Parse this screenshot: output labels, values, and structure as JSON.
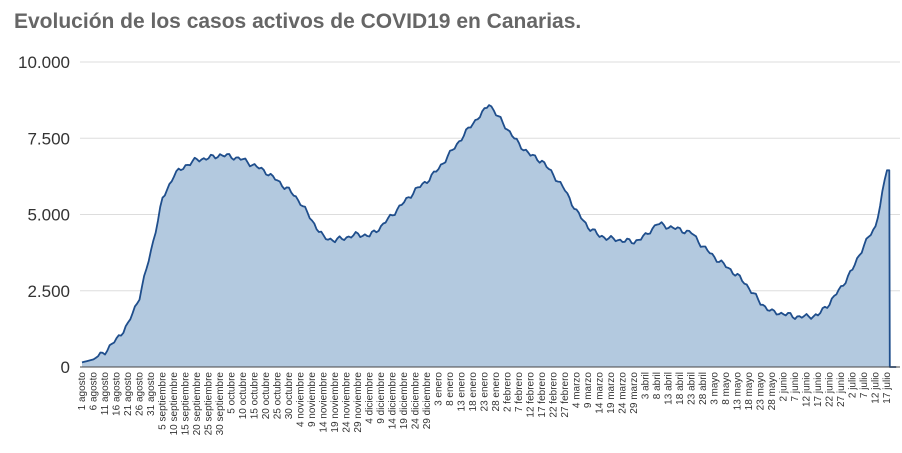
{
  "chart_data": {
    "type": "area",
    "title": "Evolución de los casos activos de COVID19 en Canarias.",
    "xlabel": "",
    "ylabel": "",
    "ylim": [
      0,
      10000
    ],
    "yticks": [
      "0",
      "2.500",
      "5.000",
      "7.500",
      "10.000"
    ],
    "yticks_values": [
      0,
      2500,
      5000,
      7500,
      10000
    ],
    "grid": true,
    "legend": "none",
    "colors": {
      "fill": "#b3c9df",
      "line": "#1f4e8c",
      "grid": "#dddddd"
    },
    "xticks": [
      "1 agosto",
      "6 agosto",
      "11 agosto",
      "16 agosto",
      "21 agosto",
      "26 agosto",
      "31 agosto",
      "5 septiembre",
      "10 septiembre",
      "15 septiembre",
      "20 septiembre",
      "25 septiembre",
      "30 septiembre",
      "5 octubre",
      "10 octubre",
      "15 octubre",
      "20 octubre",
      "25 octubre",
      "30 octubre",
      "4 noviembre",
      "9 noviembre",
      "14 noviembre",
      "19 noviembre",
      "24 noviembre",
      "29 noviembre",
      "4 diciembre",
      "9 diciembre",
      "14 diciembre",
      "19 diciembre",
      "24 diciembre",
      "29 diciembre",
      "3 enero",
      "8 enero",
      "13 enero",
      "18 enero",
      "23 enero",
      "28 enero",
      "2 febrero",
      "7 febrero",
      "12 febrero",
      "17 febrero",
      "22 febrero",
      "27 febrero",
      "4 marzo",
      "9 marzo",
      "14 marzo",
      "19 marzo",
      "24 marzo",
      "29 marzo",
      "3 abril",
      "8 abril",
      "13 abril",
      "18 abril",
      "23 abril",
      "28 abril",
      "3 mayo",
      "8 mayo",
      "13 mayo",
      "18 mayo",
      "23 mayo",
      "28 mayo",
      "2 junio",
      "7 junio",
      "12 junio",
      "17 junio",
      "22 junio",
      "27 junio",
      "2 julio",
      "7 julio",
      "12 julio",
      "17 julio"
    ],
    "x_step_days": 5,
    "anchors": [
      [
        0,
        150
      ],
      [
        5,
        250
      ],
      [
        10,
        500
      ],
      [
        15,
        900
      ],
      [
        20,
        1400
      ],
      [
        25,
        2300
      ],
      [
        30,
        3800
      ],
      [
        35,
        5500
      ],
      [
        40,
        6300
      ],
      [
        45,
        6600
      ],
      [
        50,
        6800
      ],
      [
        55,
        6850
      ],
      [
        60,
        6950
      ],
      [
        65,
        6900
      ],
      [
        70,
        6800
      ],
      [
        75,
        6600
      ],
      [
        80,
        6400
      ],
      [
        85,
        6100
      ],
      [
        90,
        5800
      ],
      [
        95,
        5400
      ],
      [
        100,
        4800
      ],
      [
        105,
        4250
      ],
      [
        110,
        4150
      ],
      [
        115,
        4250
      ],
      [
        120,
        4350
      ],
      [
        125,
        4300
      ],
      [
        130,
        4600
      ],
      [
        135,
        5000
      ],
      [
        140,
        5400
      ],
      [
        145,
        5800
      ],
      [
        150,
        6100
      ],
      [
        155,
        6500
      ],
      [
        160,
        7000
      ],
      [
        165,
        7500
      ],
      [
        170,
        8000
      ],
      [
        175,
        8400
      ],
      [
        177,
        8650
      ],
      [
        180,
        8300
      ],
      [
        185,
        7800
      ],
      [
        190,
        7300
      ],
      [
        195,
        6950
      ],
      [
        200,
        6750
      ],
      [
        205,
        6300
      ],
      [
        210,
        5800
      ],
      [
        215,
        5100
      ],
      [
        220,
        4600
      ],
      [
        225,
        4300
      ],
      [
        230,
        4200
      ],
      [
        235,
        4150
      ],
      [
        240,
        4100
      ],
      [
        245,
        4300
      ],
      [
        250,
        4700
      ],
      [
        255,
        4600
      ],
      [
        260,
        4500
      ],
      [
        265,
        4400
      ],
      [
        270,
        3950
      ],
      [
        275,
        3600
      ],
      [
        280,
        3300
      ],
      [
        285,
        3000
      ],
      [
        290,
        2600
      ],
      [
        295,
        2100
      ],
      [
        300,
        1800
      ],
      [
        305,
        1750
      ],
      [
        310,
        1650
      ],
      [
        315,
        1650
      ],
      [
        320,
        1700
      ],
      [
        325,
        2100
      ],
      [
        330,
        2600
      ],
      [
        335,
        3200
      ],
      [
        340,
        4000
      ],
      [
        345,
        4600
      ],
      [
        348,
        5700
      ],
      [
        350,
        6450
      ],
      [
        351,
        6450
      ],
      [
        351.2,
        0
      ],
      [
        354,
        0
      ]
    ]
  }
}
